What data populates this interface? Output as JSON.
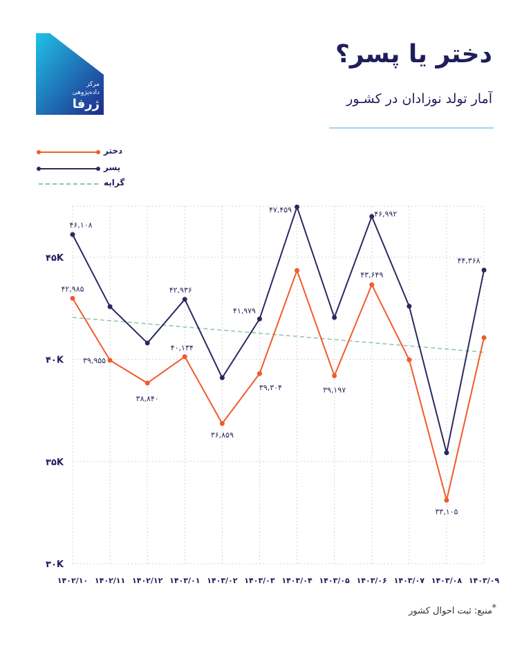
{
  "header": {
    "title": "دختر یا پسر؟",
    "subtitle": "آمار تولد نوزادان در کشـور",
    "logo_text_line1": "مرکز",
    "logo_text_line2": "داده‌پژوهی",
    "logo_brand": "ژرفا"
  },
  "legend": {
    "items": [
      {
        "label": "دختر",
        "color": "#f15a2b",
        "style": "solid"
      },
      {
        "label": "پسر",
        "color": "#2b2860",
        "style": "solid"
      },
      {
        "label": "گرایه",
        "color": "#8fc2a8",
        "style": "dashed"
      }
    ]
  },
  "footer": {
    "source": "منبع: ثبت احوال کشور",
    "star": "*"
  },
  "chart_data": {
    "type": "line",
    "categories": [
      "۱۴۰۲/۱۰",
      "۱۴۰۲/۱۱",
      "۱۴۰۲/۱۲",
      "۱۴۰۳/۰۱",
      "۱۴۰۳/۰۲",
      "۱۴۰۳/۰۳",
      "۱۴۰۳/۰۴",
      "۱۴۰۳/۰۵",
      "۱۴۰۳/۰۶",
      "۱۴۰۳/۰۷",
      "۱۴۰۳/۰۸",
      "۱۴۰۳/۰۹"
    ],
    "series": [
      {
        "name": "دختر",
        "color": "#f15a2b",
        "values": [
          42985,
          39955,
          38840,
          40134,
          36859,
          39304,
          44350,
          39197,
          43649,
          39980,
          33105,
          41060
        ],
        "labels": [
          "۴۲,۹۸۵",
          "۳۹,۹۵۵",
          "۳۸,۸۴۰",
          "۴۰,۱۳۴",
          "۳۶,۸۵۹",
          "۳۹,۳۰۴",
          null,
          "۳۹,۱۹۷",
          "۴۳,۶۴۹",
          null,
          "۳۳,۱۰۵",
          null
        ]
      },
      {
        "name": "پسر",
        "color": "#2b2860",
        "values": [
          46108,
          42580,
          40800,
          42936,
          39100,
          41979,
          47459,
          42050,
          46992,
          42600,
          35430,
          44368
        ],
        "labels": [
          "۴۶,۱۰۸",
          null,
          null,
          "۴۲,۹۳۶",
          null,
          "۴۱,۹۷۹",
          "۴۷,۴۵۹",
          null,
          "۴۶,۹۹۲",
          null,
          null,
          "۴۴,۳۶۸"
        ]
      }
    ],
    "trend": {
      "name": "گرایه",
      "color": "#8fc2a8",
      "start": 42050,
      "end": 40350
    },
    "yticks": [
      30000,
      35000,
      40000,
      45000
    ],
    "ytick_labels": [
      "۳۰K",
      "۳۵K",
      "۴۰K",
      "۴۵K"
    ],
    "ylim": [
      30000,
      47500
    ],
    "grid": true,
    "legend_position": "top-left"
  }
}
